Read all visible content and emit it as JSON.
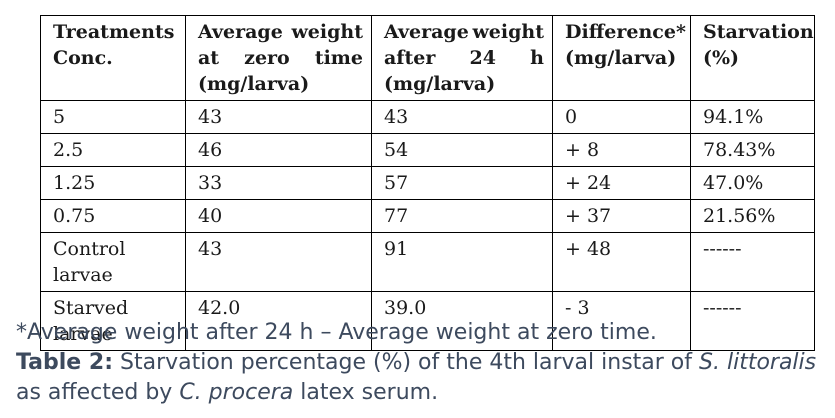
{
  "table": {
    "headers": [
      [
        "Treatments",
        "Conc."
      ],
      [
        "Average weight",
        "at zero time",
        "(mg/larva)"
      ],
      [
        "Average weight",
        "after 24 h",
        "(mg/larva)"
      ],
      [
        "Difference*",
        "(mg/larva)"
      ],
      [
        "Starvation",
        "(%)"
      ]
    ],
    "rows": [
      [
        "5",
        "43",
        "43",
        "0",
        "94.1%"
      ],
      [
        "2.5",
        "46",
        "54",
        "+ 8",
        "78.43%"
      ],
      [
        "1.25",
        "33",
        "57",
        "+ 24",
        "47.0%"
      ],
      [
        "0.75",
        "40",
        "77",
        "+ 37",
        "21.56%"
      ],
      [
        "Control larvae",
        "43",
        "91",
        "+ 48",
        "------"
      ],
      [
        "Starved larvae",
        "42.0",
        "39.0",
        "- 3",
        "------"
      ]
    ]
  },
  "caption": {
    "footnote": "*Average weight after 24 h – Average weight at zero time.",
    "label": "Table 2:",
    "text_1": " Starvation percentage (%) of the 4th larval instar of ",
    "species_1": "S. littoralis",
    "text_2": " as affected by ",
    "species_2": "C. procera",
    "text_3": " latex serum."
  }
}
